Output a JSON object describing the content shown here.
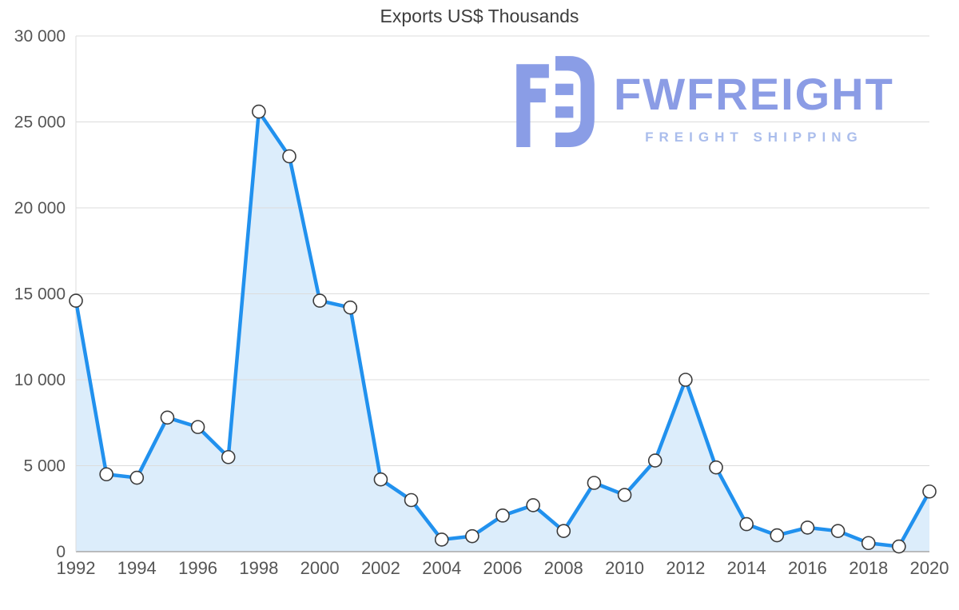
{
  "watermark": {
    "title": "FWFREIGHT",
    "subtitle": "FREIGHT SHIPPING"
  },
  "chart_data": {
    "type": "area",
    "title": "Exports US$ Thousands",
    "xlabel": "",
    "ylabel": "",
    "x": [
      1992,
      1993,
      1994,
      1995,
      1996,
      1997,
      1998,
      1999,
      2000,
      2001,
      2002,
      2003,
      2004,
      2005,
      2006,
      2007,
      2008,
      2009,
      2010,
      2011,
      2012,
      2013,
      2014,
      2015,
      2016,
      2017,
      2018,
      2019,
      2020
    ],
    "values": [
      14600,
      4500,
      4300,
      7800,
      7250,
      5500,
      25600,
      23000,
      14600,
      14200,
      4200,
      3000,
      700,
      900,
      2100,
      2700,
      1200,
      4000,
      3300,
      5300,
      10000,
      4900,
      1600,
      950,
      1400,
      1200,
      500,
      300,
      3500
    ],
    "ylim": [
      0,
      30000
    ],
    "ytick_step": 5000,
    "ytick_labels": [
      "0",
      "5 000",
      "10 000",
      "15 000",
      "20 000",
      "25 000",
      "30 000"
    ],
    "xtick_labels": [
      "1992",
      "1994",
      "1996",
      "1998",
      "2000",
      "2002",
      "2004",
      "2006",
      "2008",
      "2010",
      "2012",
      "2014",
      "2016",
      "2018",
      "2020"
    ],
    "grid": true,
    "legend": "none",
    "colors": {
      "line": "#2191ee",
      "fill": "#dcedfb",
      "marker_fill": "#ffffff",
      "marker_stroke": "#3c3c3c",
      "grid": "#dcdcdc",
      "axis": "#a8a8a8",
      "text": "#555555",
      "watermark_logo": "#8a9de6",
      "watermark_title": "#8b9ce5",
      "watermark_subtitle": "#aabdec"
    }
  }
}
